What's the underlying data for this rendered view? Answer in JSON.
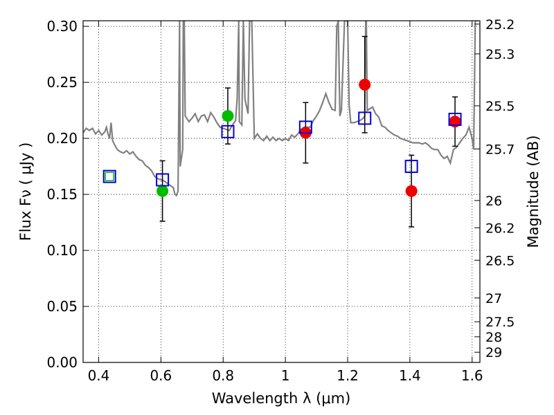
{
  "chart_data": {
    "type": "scatter",
    "title": "",
    "xlabel": "Wavelength  λ (μm)",
    "ylabel": "Flux  Fν  ( μJy )",
    "ylabel_right": "Magnitude (AB)",
    "xlim": [
      0.35,
      1.625
    ],
    "ylim": [
      0.0,
      0.305
    ],
    "grid": true,
    "x_ticks": [
      {
        "value": 0.4,
        "label": "0.4"
      },
      {
        "value": 0.6,
        "label": "0.6"
      },
      {
        "value": 0.8,
        "label": "0.8"
      },
      {
        "value": 1.0,
        "label": "1"
      },
      {
        "value": 1.2,
        "label": "1.2"
      },
      {
        "value": 1.4,
        "label": "1.4"
      },
      {
        "value": 1.6,
        "label": "1.6"
      }
    ],
    "y_ticks": [
      {
        "value": 0.0,
        "label": "0.00"
      },
      {
        "value": 0.05,
        "label": "0.05"
      },
      {
        "value": 0.1,
        "label": "0.10"
      },
      {
        "value": 0.15,
        "label": "0.15"
      },
      {
        "value": 0.2,
        "label": "0.20"
      },
      {
        "value": 0.25,
        "label": "0.25"
      },
      {
        "value": 0.3,
        "label": "0.30"
      }
    ],
    "mag_ticks": [
      {
        "value": 25.2,
        "label": "25.2"
      },
      {
        "value": 25.3,
        "label": "25.3"
      },
      {
        "value": 25.5,
        "label": "25.5"
      },
      {
        "value": 25.7,
        "label": "25.7"
      },
      {
        "value": 26.0,
        "label": "26"
      },
      {
        "value": 26.2,
        "label": "26.2"
      },
      {
        "value": 26.5,
        "label": "26.5"
      },
      {
        "value": 27.0,
        "label": "27"
      },
      {
        "value": 27.5,
        "label": "27.5"
      },
      {
        "value": 28.0,
        "label": "28"
      },
      {
        "value": 29.0,
        "label": "29"
      }
    ],
    "series": [
      {
        "marker": "circle",
        "color": "#00bb00",
        "points": [
          {
            "x": 0.605,
            "y": 0.153,
            "err": 0.027
          },
          {
            "x": 0.815,
            "y": 0.22,
            "err": 0.025
          }
        ]
      },
      {
        "marker": "circle",
        "color": "#ee0000",
        "points": [
          {
            "x": 1.065,
            "y": 0.205,
            "err": 0.027
          },
          {
            "x": 1.255,
            "y": 0.248,
            "err": 0.043
          },
          {
            "x": 1.405,
            "y": 0.153,
            "err": 0.032
          },
          {
            "x": 1.545,
            "y": 0.215,
            "err": 0.022
          }
        ]
      },
      {
        "marker": "open-square",
        "color": "#0000dd",
        "points": [
          {
            "x": 0.435,
            "y": 0.166
          },
          {
            "x": 0.605,
            "y": 0.163
          },
          {
            "x": 0.815,
            "y": 0.206
          },
          {
            "x": 1.065,
            "y": 0.21
          },
          {
            "x": 1.255,
            "y": 0.218
          },
          {
            "x": 1.405,
            "y": 0.175
          },
          {
            "x": 1.545,
            "y": 0.217
          }
        ]
      },
      {
        "marker": "open-square-filled",
        "color": "#00bb00",
        "points": [
          {
            "x": 0.435,
            "y": 0.166
          }
        ]
      },
      {
        "marker": "line",
        "color": "#808080",
        "points": [
          {
            "x": 0.35,
            "y": 0.205
          },
          {
            "x": 0.36,
            "y": 0.209
          },
          {
            "x": 0.37,
            "y": 0.207
          },
          {
            "x": 0.38,
            "y": 0.209
          },
          {
            "x": 0.39,
            "y": 0.204
          },
          {
            "x": 0.4,
            "y": 0.207
          },
          {
            "x": 0.41,
            "y": 0.203
          },
          {
            "x": 0.42,
            "y": 0.206
          },
          {
            "x": 0.425,
            "y": 0.21
          },
          {
            "x": 0.43,
            "y": 0.204
          },
          {
            "x": 0.435,
            "y": 0.2
          },
          {
            "x": 0.44,
            "y": 0.214
          },
          {
            "x": 0.445,
            "y": 0.198
          },
          {
            "x": 0.45,
            "y": 0.195
          },
          {
            "x": 0.46,
            "y": 0.19
          },
          {
            "x": 0.47,
            "y": 0.188
          },
          {
            "x": 0.48,
            "y": 0.187
          },
          {
            "x": 0.49,
            "y": 0.189
          },
          {
            "x": 0.5,
            "y": 0.186
          },
          {
            "x": 0.51,
            "y": 0.188
          },
          {
            "x": 0.52,
            "y": 0.184
          },
          {
            "x": 0.53,
            "y": 0.181
          },
          {
            "x": 0.54,
            "y": 0.18
          },
          {
            "x": 0.55,
            "y": 0.176
          },
          {
            "x": 0.56,
            "y": 0.174
          },
          {
            "x": 0.57,
            "y": 0.171
          },
          {
            "x": 0.58,
            "y": 0.166
          },
          {
            "x": 0.59,
            "y": 0.164
          },
          {
            "x": 0.6,
            "y": 0.163
          },
          {
            "x": 0.61,
            "y": 0.162
          },
          {
            "x": 0.62,
            "y": 0.16
          },
          {
            "x": 0.63,
            "y": 0.158
          },
          {
            "x": 0.64,
            "y": 0.156
          },
          {
            "x": 0.645,
            "y": 0.15
          },
          {
            "x": 0.65,
            "y": 0.149
          },
          {
            "x": 0.655,
            "y": 0.153
          },
          {
            "x": 0.66,
            "y": 0.305
          },
          {
            "x": 0.662,
            "y": 0.175
          },
          {
            "x": 0.67,
            "y": 0.19
          },
          {
            "x": 0.672,
            "y": 0.305
          },
          {
            "x": 0.675,
            "y": 0.305
          },
          {
            "x": 0.678,
            "y": 0.22
          },
          {
            "x": 0.69,
            "y": 0.215
          },
          {
            "x": 0.7,
            "y": 0.218
          },
          {
            "x": 0.71,
            "y": 0.222
          },
          {
            "x": 0.72,
            "y": 0.215
          },
          {
            "x": 0.73,
            "y": 0.22
          },
          {
            "x": 0.74,
            "y": 0.221
          },
          {
            "x": 0.75,
            "y": 0.215
          },
          {
            "x": 0.76,
            "y": 0.223
          },
          {
            "x": 0.77,
            "y": 0.219
          },
          {
            "x": 0.78,
            "y": 0.214
          },
          {
            "x": 0.79,
            "y": 0.21
          },
          {
            "x": 0.8,
            "y": 0.209
          },
          {
            "x": 0.81,
            "y": 0.208
          },
          {
            "x": 0.82,
            "y": 0.207
          },
          {
            "x": 0.83,
            "y": 0.212
          },
          {
            "x": 0.84,
            "y": 0.216
          },
          {
            "x": 0.845,
            "y": 0.236
          },
          {
            "x": 0.85,
            "y": 0.305
          },
          {
            "x": 0.852,
            "y": 0.215
          },
          {
            "x": 0.86,
            "y": 0.212
          },
          {
            "x": 0.865,
            "y": 0.305
          },
          {
            "x": 0.87,
            "y": 0.235
          },
          {
            "x": 0.88,
            "y": 0.222
          },
          {
            "x": 0.885,
            "y": 0.305
          },
          {
            "x": 0.892,
            "y": 0.305
          },
          {
            "x": 0.9,
            "y": 0.2
          },
          {
            "x": 0.91,
            "y": 0.204
          },
          {
            "x": 0.92,
            "y": 0.2
          },
          {
            "x": 0.93,
            "y": 0.198
          },
          {
            "x": 0.94,
            "y": 0.202
          },
          {
            "x": 0.95,
            "y": 0.198
          },
          {
            "x": 0.96,
            "y": 0.201
          },
          {
            "x": 0.97,
            "y": 0.198
          },
          {
            "x": 0.98,
            "y": 0.2
          },
          {
            "x": 0.99,
            "y": 0.198
          },
          {
            "x": 1.0,
            "y": 0.2
          },
          {
            "x": 1.01,
            "y": 0.198
          },
          {
            "x": 1.02,
            "y": 0.203
          },
          {
            "x": 1.03,
            "y": 0.201
          },
          {
            "x": 1.04,
            "y": 0.204
          },
          {
            "x": 1.05,
            "y": 0.208
          },
          {
            "x": 1.06,
            "y": 0.21
          },
          {
            "x": 1.08,
            "y": 0.21
          },
          {
            "x": 1.09,
            "y": 0.216
          },
          {
            "x": 1.1,
            "y": 0.22
          },
          {
            "x": 1.11,
            "y": 0.225
          },
          {
            "x": 1.12,
            "y": 0.232
          },
          {
            "x": 1.13,
            "y": 0.24
          },
          {
            "x": 1.14,
            "y": 0.232
          },
          {
            "x": 1.15,
            "y": 0.226
          },
          {
            "x": 1.16,
            "y": 0.225
          },
          {
            "x": 1.165,
            "y": 0.3
          },
          {
            "x": 1.17,
            "y": 0.305
          },
          {
            "x": 1.175,
            "y": 0.22
          },
          {
            "x": 1.18,
            "y": 0.225
          },
          {
            "x": 1.19,
            "y": 0.305
          },
          {
            "x": 1.2,
            "y": 0.305
          },
          {
            "x": 1.205,
            "y": 0.23
          },
          {
            "x": 1.21,
            "y": 0.214
          },
          {
            "x": 1.22,
            "y": 0.214
          },
          {
            "x": 1.23,
            "y": 0.215
          },
          {
            "x": 1.24,
            "y": 0.216
          },
          {
            "x": 1.25,
            "y": 0.218
          },
          {
            "x": 1.255,
            "y": 0.22
          },
          {
            "x": 1.258,
            "y": 0.305
          },
          {
            "x": 1.26,
            "y": 0.305
          },
          {
            "x": 1.263,
            "y": 0.225
          },
          {
            "x": 1.28,
            "y": 0.228
          },
          {
            "x": 1.29,
            "y": 0.222
          },
          {
            "x": 1.3,
            "y": 0.219
          },
          {
            "x": 1.31,
            "y": 0.211
          },
          {
            "x": 1.32,
            "y": 0.21
          },
          {
            "x": 1.33,
            "y": 0.207
          },
          {
            "x": 1.34,
            "y": 0.205
          },
          {
            "x": 1.35,
            "y": 0.203
          },
          {
            "x": 1.36,
            "y": 0.202
          },
          {
            "x": 1.37,
            "y": 0.2
          },
          {
            "x": 1.38,
            "y": 0.199
          },
          {
            "x": 1.39,
            "y": 0.198
          },
          {
            "x": 1.4,
            "y": 0.197
          },
          {
            "x": 1.41,
            "y": 0.196
          },
          {
            "x": 1.42,
            "y": 0.196
          },
          {
            "x": 1.43,
            "y": 0.196
          },
          {
            "x": 1.44,
            "y": 0.195
          },
          {
            "x": 1.45,
            "y": 0.196
          },
          {
            "x": 1.46,
            "y": 0.194
          },
          {
            "x": 1.47,
            "y": 0.191
          },
          {
            "x": 1.48,
            "y": 0.19
          },
          {
            "x": 1.49,
            "y": 0.19
          },
          {
            "x": 1.5,
            "y": 0.185
          },
          {
            "x": 1.51,
            "y": 0.182
          },
          {
            "x": 1.52,
            "y": 0.184
          },
          {
            "x": 1.53,
            "y": 0.178
          },
          {
            "x": 1.54,
            "y": 0.19
          },
          {
            "x": 1.55,
            "y": 0.192
          },
          {
            "x": 1.56,
            "y": 0.196
          },
          {
            "x": 1.57,
            "y": 0.2
          },
          {
            "x": 1.58,
            "y": 0.203
          },
          {
            "x": 1.59,
            "y": 0.21
          },
          {
            "x": 1.6,
            "y": 0.2
          },
          {
            "x": 1.605,
            "y": 0.19
          },
          {
            "x": 1.61,
            "y": 0.305
          },
          {
            "x": 1.615,
            "y": 0.305
          },
          {
            "x": 1.62,
            "y": 0.305
          }
        ]
      }
    ]
  }
}
